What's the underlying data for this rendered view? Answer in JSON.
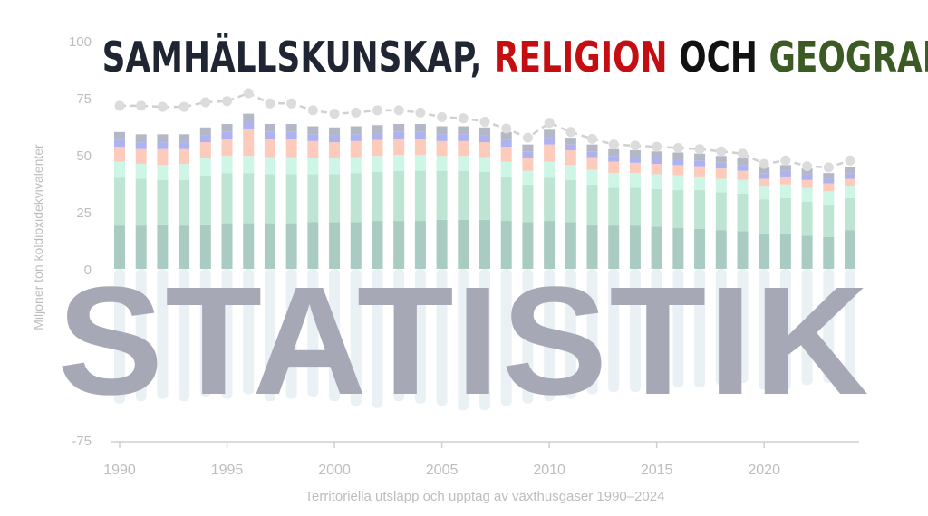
{
  "headline": {
    "part1": "SAMHÄLLSKUNSKAP,",
    "part2": "RELIGION",
    "part3": "OCH",
    "part4": "GEOGRAFI",
    "colors": {
      "part1": "#1f2533",
      "part2": "#c40e12",
      "part3": "#111111",
      "part4": "#3c5a23"
    }
  },
  "stamp_text": "STATISTIK",
  "chart_data": {
    "type": "bar",
    "stacked": true,
    "title": "",
    "xlabel": "Territoriella utsläpp och upptag av växthusgaser 1990–2024",
    "ylabel": "Miljoner ton koldioxidekvivalenter",
    "ylim": [
      -75,
      100
    ],
    "yticks": [
      -75,
      0,
      25,
      50,
      75,
      100
    ],
    "xticks": [
      1990,
      1995,
      2000,
      2005,
      2010,
      2015,
      2020
    ],
    "grid": false,
    "x": [
      1990,
      1991,
      1992,
      1993,
      1994,
      1995,
      1996,
      1997,
      1998,
      1999,
      2000,
      2001,
      2002,
      2003,
      2004,
      2005,
      2006,
      2007,
      2008,
      2009,
      2010,
      2011,
      2012,
      2013,
      2014,
      2015,
      2016,
      2017,
      2018,
      2019,
      2020,
      2021,
      2022,
      2023,
      2024
    ],
    "series": [
      {
        "color": "#a9cbc2",
        "values": [
          19,
          19,
          19.5,
          19,
          19.5,
          20,
          20,
          20,
          20,
          20.5,
          20.5,
          20.5,
          21,
          21,
          21,
          21.5,
          21.5,
          21.5,
          21,
          20.5,
          21,
          20.5,
          19.5,
          19,
          19,
          18.5,
          18,
          17.5,
          17,
          16.5,
          15.5,
          15.5,
          14.5,
          14,
          17
        ]
      },
      {
        "color": "#bee5d3",
        "values": [
          21,
          20.5,
          19.5,
          20,
          21.5,
          22,
          22,
          21.5,
          21.5,
          21,
          21,
          21.5,
          21.5,
          22,
          22,
          21.5,
          21.5,
          21,
          19.5,
          16.5,
          19,
          18.5,
          17.5,
          16.5,
          16.5,
          16.5,
          16.5,
          17,
          16.5,
          16.5,
          15,
          15.5,
          15,
          14,
          14
        ]
      },
      {
        "color": "#cdf6e6",
        "values": [
          7,
          6.5,
          6.5,
          7,
          7.5,
          7.5,
          7.5,
          7.5,
          7.5,
          7,
          7,
          7,
          7,
          7,
          7,
          6.5,
          6.5,
          6.5,
          6.5,
          6,
          7,
          6.5,
          6.5,
          6.5,
          6.5,
          6.5,
          6.5,
          6,
          6,
          6,
          5.5,
          6,
          6,
          6,
          5.5
        ]
      },
      {
        "color": "#fccbbc",
        "values": [
          6.5,
          6.5,
          7,
          6.5,
          7,
          7.5,
          12,
          8,
          8,
          7.5,
          7,
          7,
          7,
          7,
          7,
          6.5,
          6.5,
          6.5,
          6.5,
          5.5,
          7.5,
          6.5,
          5.5,
          5,
          4.5,
          4.5,
          4.5,
          4.5,
          4.5,
          4,
          3.5,
          3.5,
          3.5,
          3.5,
          3
        ]
      },
      {
        "color": "#aeb2ef",
        "values": [
          3,
          3,
          3,
          3,
          3,
          3,
          3,
          3,
          3,
          3,
          3,
          3,
          3,
          3,
          3,
          3,
          3,
          3,
          3,
          3,
          3,
          2.5,
          2.5,
          2.5,
          2.5,
          2.5,
          2.5,
          2.5,
          2.5,
          2.5,
          2.5,
          2.5,
          2.5,
          2,
          2.5
        ]
      },
      {
        "color": "#b3b8c6",
        "values": [
          3.5,
          3.5,
          3.5,
          3.5,
          3.5,
          3.5,
          3.5,
          3.5,
          3.5,
          3.5,
          3.5,
          3.5,
          3.5,
          3.5,
          3.5,
          3.5,
          3.5,
          3.5,
          3.5,
          3,
          3.5,
          3,
          3,
          3,
          3,
          3,
          3,
          3,
          3,
          3,
          2.5,
          2.5,
          2.5,
          2.5,
          2.5
        ]
      },
      {
        "color": "#e9f1f5",
        "values": [
          -59,
          -58,
          -57,
          -58,
          -56,
          -57,
          -55,
          -58,
          -57,
          -56,
          -58,
          -60,
          -61,
          -58,
          -59,
          -60,
          -62,
          -62,
          -60,
          -59,
          -58,
          -57,
          -55,
          -54,
          -54,
          -53,
          -52,
          -52,
          -51,
          -50,
          -53,
          -53,
          -51,
          -50,
          -48
        ]
      }
    ],
    "total_line": {
      "color": "#d0d0d0",
      "values": [
        71.5,
        71.5,
        71,
        71,
        73,
        73.5,
        77,
        72.5,
        72.5,
        69.5,
        68,
        68.5,
        69.5,
        69.5,
        68.5,
        66.5,
        66,
        64.5,
        61.5,
        57.5,
        64,
        60,
        57,
        54.5,
        54,
        53.5,
        53,
        52.5,
        51.5,
        50.5,
        46,
        47.5,
        45,
        44.5,
        47.5
      ]
    }
  }
}
